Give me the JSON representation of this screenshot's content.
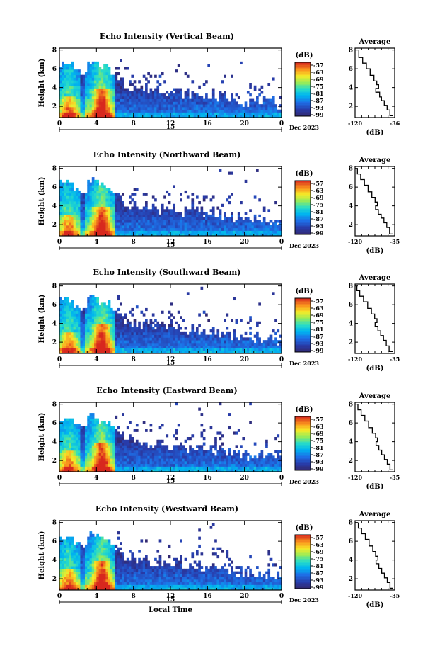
{
  "figure": {
    "x_axis_label": "Local Time",
    "date_label": "Dec 2023",
    "day_label": "15",
    "colorbar_unit": "(dB)",
    "profile_title": "Average",
    "profile_xlabel": "(dB)"
  },
  "chart_data": [
    {
      "type": "heatmap",
      "title": "Echo Intensity (Vertical Beam)",
      "xlabel": "",
      "ylabel": "Height (km)",
      "xticks": [
        "0",
        "4",
        "8",
        "12",
        "16",
        "20",
        "0"
      ],
      "yticks": [
        "2",
        "4",
        "6",
        "8"
      ],
      "xlim": [
        0,
        24
      ],
      "ylim": [
        0.8,
        8.2
      ],
      "colorbar": {
        "ticks": [
          "-57",
          "-63",
          "-69",
          "-75",
          "-81",
          "-87",
          "-93",
          "-99"
        ],
        "range": [
          -99,
          -57
        ]
      },
      "profile": {
        "xlim": [
          -120,
          -36
        ],
        "xticks": [
          "-120",
          "-36"
        ],
        "ylim": [
          0.8,
          8.2
        ],
        "yticks": [
          "2",
          "4",
          "6",
          "8"
        ],
        "points": [
          [
            -112,
            8.0
          ],
          [
            -104,
            7.2
          ],
          [
            -96,
            6.6
          ],
          [
            -88,
            6.0
          ],
          [
            -80,
            5.3
          ],
          [
            -74,
            4.7
          ],
          [
            -70,
            4.3
          ],
          [
            -76,
            3.9
          ],
          [
            -68,
            3.5
          ],
          [
            -64,
            3.0
          ],
          [
            -58,
            2.6
          ],
          [
            -52,
            2.1
          ],
          [
            -46,
            1.6
          ],
          [
            -40,
            1.0
          ]
        ]
      }
    },
    {
      "type": "heatmap",
      "title": "Echo Intensity (Northward Beam)",
      "xlabel": "",
      "ylabel": "Height (km)",
      "xticks": [
        "0",
        "4",
        "8",
        "12",
        "16",
        "20",
        "0"
      ],
      "yticks": [
        "2",
        "4",
        "6",
        "8"
      ],
      "xlim": [
        0,
        24
      ],
      "ylim": [
        0.8,
        8.2
      ],
      "colorbar": {
        "ticks": [
          "-57",
          "-63",
          "-69",
          "-75",
          "-81",
          "-87",
          "-93",
          "-99"
        ],
        "range": [
          -99,
          -57
        ]
      },
      "profile": {
        "xlim": [
          -120,
          -35
        ],
        "xticks": [
          "-120",
          "-35"
        ],
        "ylim": [
          0.8,
          8.2
        ],
        "yticks": [
          "2",
          "4",
          "6",
          "8"
        ],
        "points": [
          [
            -115,
            8.0
          ],
          [
            -108,
            7.4
          ],
          [
            -100,
            6.8
          ],
          [
            -92,
            6.2
          ],
          [
            -84,
            5.5
          ],
          [
            -77,
            4.9
          ],
          [
            -72,
            4.4
          ],
          [
            -76,
            4.0
          ],
          [
            -70,
            3.6
          ],
          [
            -64,
            3.1
          ],
          [
            -58,
            2.7
          ],
          [
            -52,
            2.2
          ],
          [
            -46,
            1.7
          ],
          [
            -38,
            1.0
          ]
        ]
      }
    },
    {
      "type": "heatmap",
      "title": "Echo Intensity (Southward Beam)",
      "xlabel": "",
      "ylabel": "Height (km)",
      "xticks": [
        "0",
        "4",
        "8",
        "12",
        "16",
        "20",
        "0"
      ],
      "yticks": [
        "2",
        "4",
        "6",
        "8"
      ],
      "xlim": [
        0,
        24
      ],
      "ylim": [
        0.8,
        8.2
      ],
      "colorbar": {
        "ticks": [
          "-57",
          "-63",
          "-69",
          "-75",
          "-81",
          "-87",
          "-93",
          "-99"
        ],
        "range": [
          -99,
          -57
        ]
      },
      "profile": {
        "xlim": [
          -120,
          -35
        ],
        "xticks": [
          "-120",
          "-35"
        ],
        "ylim": [
          0.8,
          8.2
        ],
        "yticks": [
          "2",
          "4",
          "6",
          "8"
        ],
        "points": [
          [
            -116,
            8.0
          ],
          [
            -110,
            7.5
          ],
          [
            -102,
            6.9
          ],
          [
            -93,
            6.3
          ],
          [
            -85,
            5.6
          ],
          [
            -78,
            5.0
          ],
          [
            -73,
            4.5
          ],
          [
            -77,
            4.1
          ],
          [
            -71,
            3.7
          ],
          [
            -65,
            3.2
          ],
          [
            -59,
            2.7
          ],
          [
            -53,
            2.2
          ],
          [
            -47,
            1.6
          ],
          [
            -38,
            1.0
          ]
        ]
      }
    },
    {
      "type": "heatmap",
      "title": "Echo Intensity (Eastward Beam)",
      "xlabel": "",
      "ylabel": "Height (km)",
      "xticks": [
        "0",
        "4",
        "8",
        "12",
        "16",
        "20",
        "0"
      ],
      "yticks": [
        "2",
        "4",
        "6",
        "8"
      ],
      "xlim": [
        0,
        24
      ],
      "ylim": [
        0.8,
        8.2
      ],
      "colorbar": {
        "ticks": [
          "-57",
          "-63",
          "-69",
          "-75",
          "-81",
          "-87",
          "-93",
          "-99"
        ],
        "range": [
          -99,
          -57
        ]
      },
      "profile": {
        "xlim": [
          -120,
          -35
        ],
        "xticks": [
          "-120",
          "-35"
        ],
        "ylim": [
          0.8,
          8.2
        ],
        "yticks": [
          "2",
          "4",
          "6",
          "8"
        ],
        "points": [
          [
            -114,
            8.0
          ],
          [
            -107,
            7.4
          ],
          [
            -99,
            6.8
          ],
          [
            -91,
            6.2
          ],
          [
            -83,
            5.5
          ],
          [
            -76,
            4.9
          ],
          [
            -72,
            4.4
          ],
          [
            -75,
            4.0
          ],
          [
            -69,
            3.6
          ],
          [
            -63,
            3.1
          ],
          [
            -57,
            2.6
          ],
          [
            -51,
            2.1
          ],
          [
            -45,
            1.6
          ],
          [
            -38,
            1.0
          ]
        ]
      }
    },
    {
      "type": "heatmap",
      "title": "Echo Intensity (Westward Beam)",
      "xlabel": "Local Time",
      "ylabel": "Height (km)",
      "xticks": [
        "0",
        "4",
        "8",
        "12",
        "16",
        "20",
        "0"
      ],
      "yticks": [
        "2",
        "4",
        "6",
        "8"
      ],
      "xlim": [
        0,
        24
      ],
      "ylim": [
        0.8,
        8.2
      ],
      "colorbar": {
        "ticks": [
          "-57",
          "-63",
          "-69",
          "-75",
          "-81",
          "-87",
          "-93",
          "-99"
        ],
        "range": [
          -99,
          -57
        ]
      },
      "profile": {
        "xlim": [
          -120,
          -35
        ],
        "xticks": [
          "-120",
          "-35"
        ],
        "ylim": [
          0.8,
          8.2
        ],
        "yticks": [
          "2",
          "4",
          "6",
          "8"
        ],
        "points": [
          [
            -113,
            8.0
          ],
          [
            -106,
            7.4
          ],
          [
            -98,
            6.8
          ],
          [
            -90,
            6.2
          ],
          [
            -82,
            5.5
          ],
          [
            -76,
            4.9
          ],
          [
            -71,
            4.4
          ],
          [
            -75,
            4.0
          ],
          [
            -69,
            3.6
          ],
          [
            -63,
            3.1
          ],
          [
            -57,
            2.6
          ],
          [
            -51,
            2.1
          ],
          [
            -45,
            1.6
          ],
          [
            -38,
            1.0
          ]
        ]
      }
    }
  ]
}
